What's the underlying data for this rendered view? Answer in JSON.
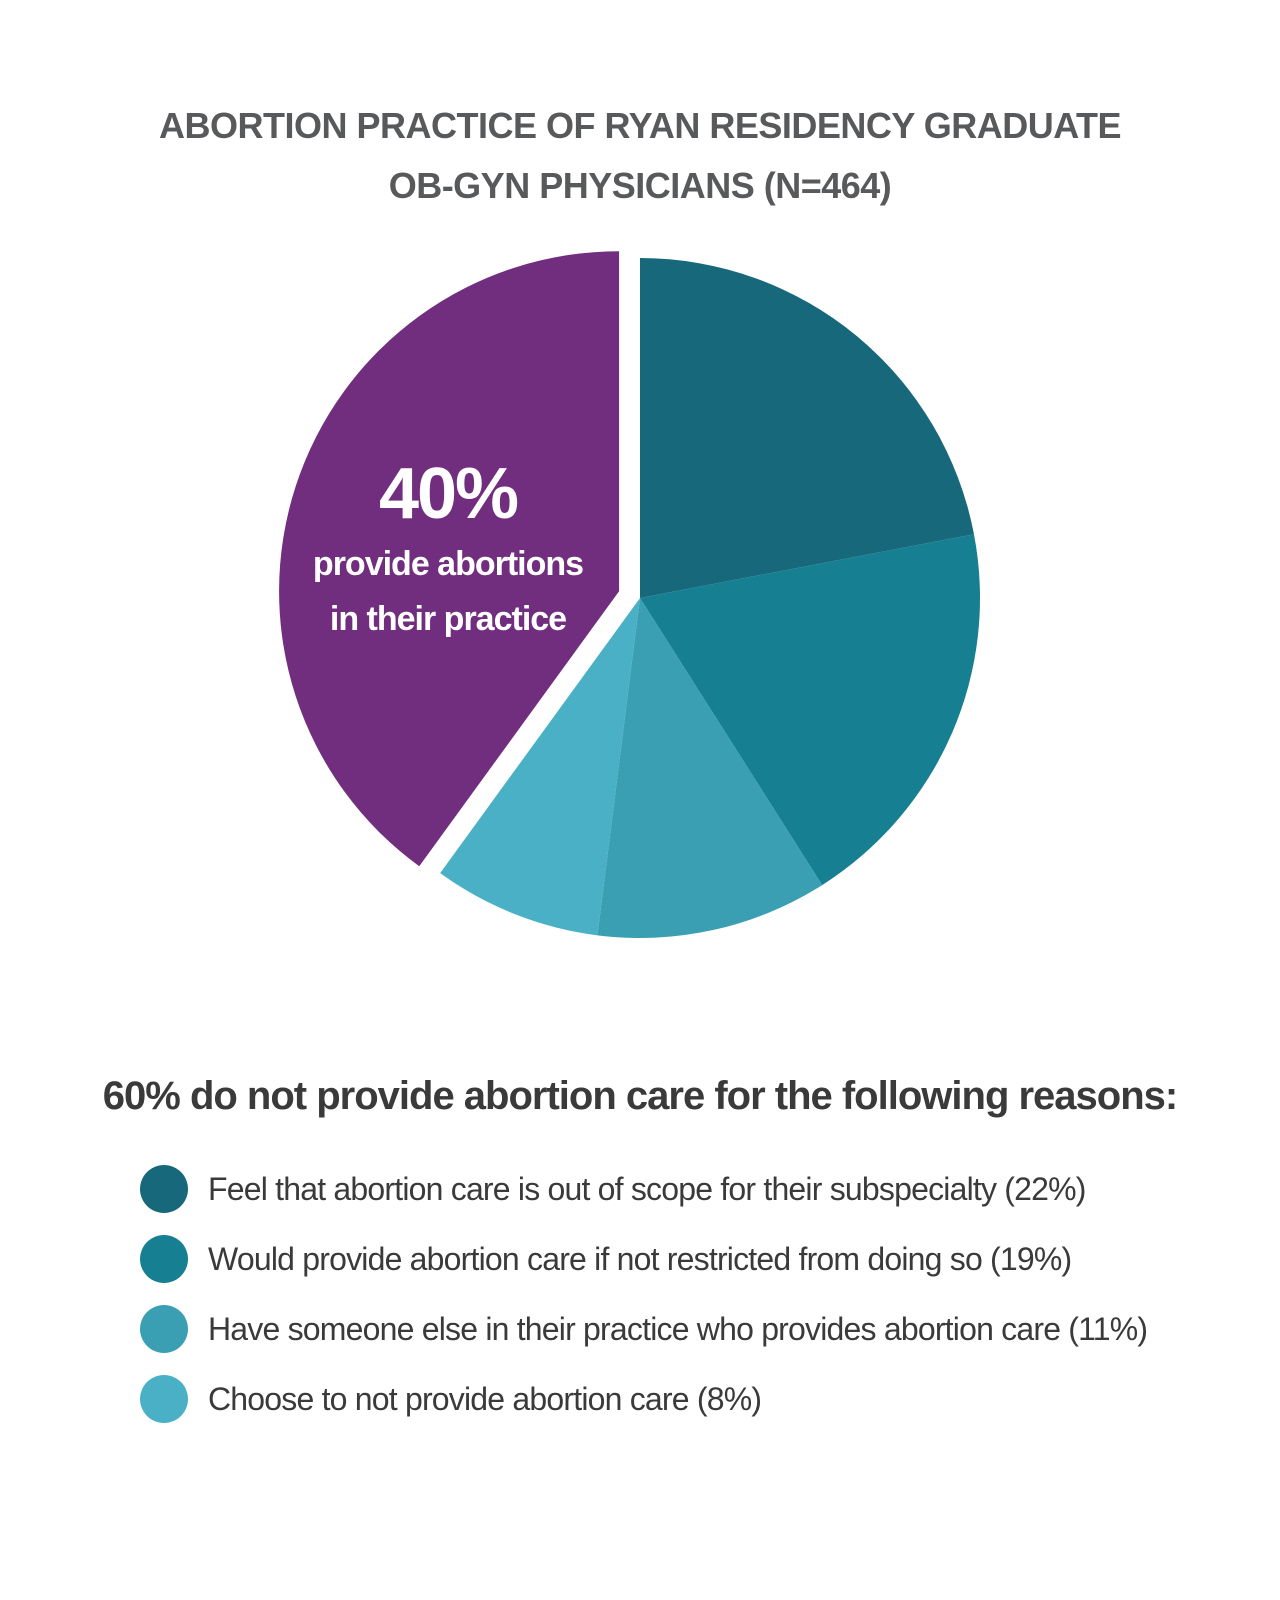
{
  "title": {
    "line1": "ABORTION PRACTICE OF RYAN RESIDENCY GRADUATE",
    "line2": "OB-GYN PHYSICIANS (N=464)"
  },
  "callout": {
    "percent": "40%",
    "line1": "provide abortions",
    "line2": "in their practice"
  },
  "reasons_heading": "60% do not provide abortion care for the following reasons:",
  "chart_data": {
    "type": "pie",
    "title": "ABORTION PRACTICE OF RYAN RESIDENCY GRADUATE OB-GYN PHYSICIANS (N=464)",
    "slices": [
      {
        "label": "Feel that abortion care is out of scope for their subspecialty (22%)",
        "value": 22,
        "color": "#17687b"
      },
      {
        "label": "Would provide abortion care if not restricted from doing so (19%)",
        "value": 19,
        "color": "#167f91"
      },
      {
        "label": "Have someone else in their practice who provides abortion care (11%)",
        "value": 11,
        "color": "#3a9fb2"
      },
      {
        "label": "Choose to not provide abortion care (8%)",
        "value": 8,
        "color": "#4ab0c6"
      },
      {
        "label": "provide abortions in their practice",
        "value": 40,
        "color": "#712d7e",
        "exploded": true
      }
    ]
  }
}
